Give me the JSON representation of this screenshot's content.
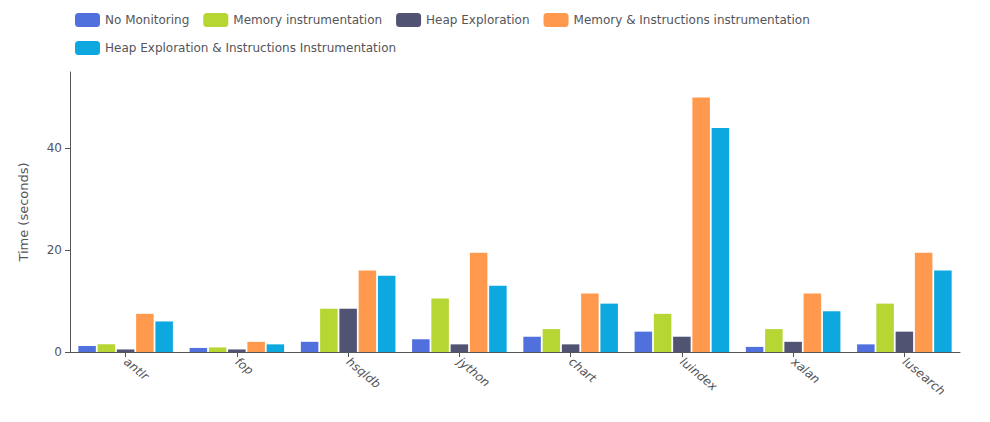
{
  "chart_data": {
    "type": "bar",
    "categories": [
      "antlr",
      "fop",
      "hsqldb",
      "jython",
      "chart",
      "luindex",
      "xalan",
      "lusearch"
    ],
    "series": [
      {
        "name": "No Monitoring",
        "values": [
          1.2,
          0.8,
          2.0,
          2.5,
          3.0,
          4.0,
          1.0,
          1.5
        ]
      },
      {
        "name": "Memory instrumentation",
        "values": [
          1.5,
          0.9,
          8.5,
          10.5,
          4.5,
          7.5,
          4.5,
          9.5
        ]
      },
      {
        "name": "Heap Exploration",
        "values": [
          0.5,
          0.5,
          8.5,
          1.5,
          1.5,
          3.0,
          2.0,
          4.0
        ]
      },
      {
        "name": "Memory & Instructions instrumentation",
        "values": [
          7.5,
          2.0,
          16.0,
          19.5,
          11.5,
          50.0,
          11.5,
          19.5
        ]
      },
      {
        "name": "Heap Exploration & Instructions Instrumentation",
        "values": [
          6.0,
          1.5,
          15.0,
          13.0,
          9.5,
          44.0,
          8.0,
          16.0
        ]
      }
    ],
    "ylabel": "Time (seconds)",
    "ylim": [
      0,
      55
    ],
    "yticks": [
      0,
      20,
      40
    ],
    "grid": false,
    "legend": "upper left"
  }
}
